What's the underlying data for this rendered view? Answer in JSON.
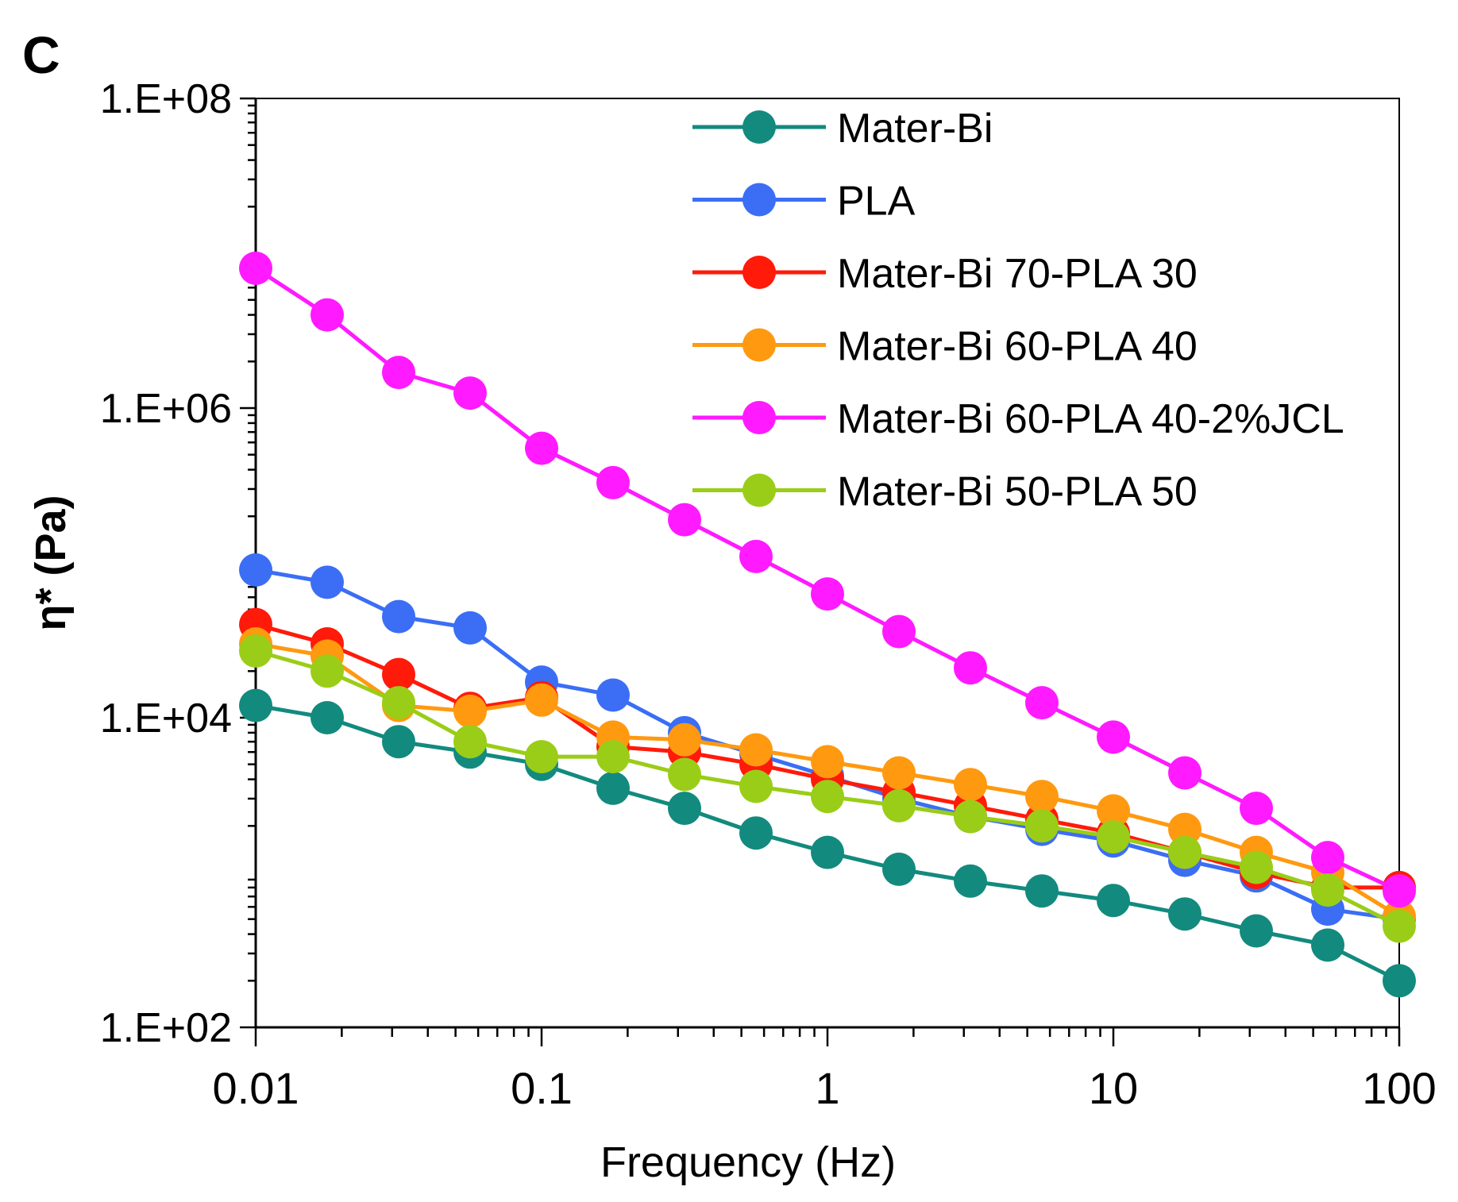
{
  "chart_data": {
    "type": "line",
    "panel_label": "C",
    "title": "",
    "xlabel": "Frequency (Hz)",
    "ylabel": "η* (Pa)",
    "xscale": "log",
    "yscale": "log",
    "xlim": [
      0.01,
      100
    ],
    "ylim": [
      100,
      100000000
    ],
    "x_tick_values": [
      0.01,
      0.1,
      1,
      10,
      100
    ],
    "x_tick_labels": [
      "0.01",
      "0.1",
      "1",
      "10",
      "100"
    ],
    "y_tick_values": [
      100,
      10000,
      1000000,
      100000000
    ],
    "y_tick_labels": [
      "1.E+02",
      "1.E+04",
      "1.E+06",
      "1.E+08"
    ],
    "legend_position": "top-right",
    "x": [
      0.01,
      0.01778,
      0.03162,
      0.05623,
      0.1,
      0.1778,
      0.3162,
      0.5623,
      1,
      1.778,
      3.162,
      5.623,
      10,
      17.78,
      31.62,
      56.23,
      100
    ],
    "series": [
      {
        "name": "Mater-Bi",
        "color": "#138a7e",
        "values": [
          12000,
          10000,
          7000,
          6000,
          5000,
          3500,
          2600,
          1800,
          1350,
          1050,
          880,
          760,
          660,
          540,
          420,
          340,
          200
        ]
      },
      {
        "name": "PLA",
        "color": "#3b6ef5",
        "values": [
          90000,
          75000,
          45000,
          38000,
          17000,
          14000,
          8000,
          5800,
          4200,
          3000,
          2300,
          1900,
          1600,
          1200,
          950,
          580,
          500
        ]
      },
      {
        "name": "Mater-Bi 70-PLA 30",
        "color": "#ff1a0a",
        "values": [
          40000,
          30000,
          19000,
          11500,
          13500,
          6500,
          6000,
          5000,
          4000,
          3300,
          2700,
          2200,
          1800,
          1350,
          1000,
          800,
          800
        ]
      },
      {
        "name": "Mater-Bi 60-PLA 40",
        "color": "#ff9910",
        "values": [
          30000,
          25000,
          12000,
          11000,
          13000,
          7500,
          7200,
          6200,
          5200,
          4400,
          3700,
          3100,
          2500,
          1900,
          1350,
          1000,
          520
        ]
      },
      {
        "name": "Mater-Bi 60-PLA 40-2%JCL",
        "color": "#ff1aff",
        "values": [
          8000000,
          4000000,
          1700000,
          1250000,
          550000,
          330000,
          190000,
          110000,
          63000,
          36000,
          21000,
          12500,
          7500,
          4400,
          2600,
          1250,
          760
        ]
      },
      {
        "name": "Mater-Bi 50-PLA 50",
        "color": "#9acd17",
        "values": [
          27000,
          20000,
          12500,
          7000,
          5600,
          5600,
          4300,
          3600,
          3100,
          2700,
          2300,
          2000,
          1700,
          1350,
          1080,
          770,
          450
        ]
      }
    ]
  }
}
